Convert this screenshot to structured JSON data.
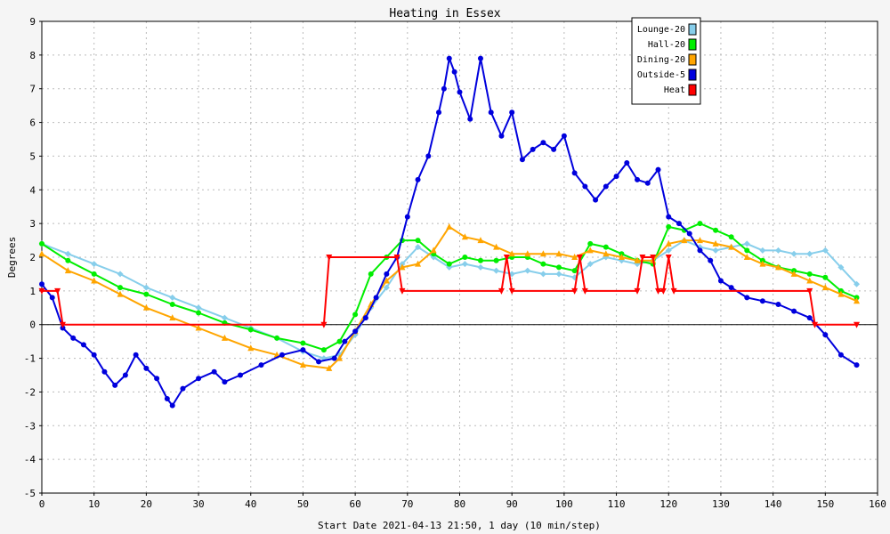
{
  "chart_data": {
    "type": "line",
    "title": "Heating in Essex",
    "xlabel": "Start Date 2021-04-13 21:50, 1 day (10 min/step)",
    "ylabel": "Degrees",
    "xlim": [
      0,
      160
    ],
    "ylim": [
      -5,
      9
    ],
    "xticks": [
      0,
      10,
      20,
      30,
      40,
      50,
      60,
      70,
      80,
      90,
      100,
      110,
      120,
      130,
      140,
      150,
      160
    ],
    "yticks": [
      -5,
      -4,
      -3,
      -2,
      -1,
      0,
      1,
      2,
      3,
      4,
      5,
      6,
      7,
      8,
      9
    ],
    "grid": true,
    "legend_position": "top-right",
    "background": "#f5f5f5",
    "series": [
      {
        "name": "Lounge-20",
        "color": "#87ceeb",
        "marker": "diamond",
        "x": [
          0,
          5,
          10,
          15,
          20,
          25,
          30,
          35,
          40,
          45,
          50,
          54,
          57,
          60,
          63,
          66,
          69,
          72,
          75,
          78,
          81,
          84,
          87,
          90,
          93,
          96,
          99,
          102,
          105,
          108,
          111,
          114,
          117,
          120,
          123,
          126,
          129,
          132,
          135,
          138,
          141,
          144,
          147,
          150,
          153,
          156
        ],
        "y": [
          2.4,
          2.1,
          1.8,
          1.5,
          1.1,
          0.8,
          0.5,
          0.2,
          -0.1,
          -0.4,
          -0.8,
          -1.0,
          -0.9,
          -0.3,
          0.5,
          1.1,
          1.8,
          2.3,
          2.0,
          1.7,
          1.8,
          1.7,
          1.6,
          1.5,
          1.6,
          1.5,
          1.5,
          1.4,
          1.8,
          2.0,
          1.9,
          1.8,
          1.9,
          2.2,
          2.5,
          2.3,
          2.2,
          2.3,
          2.4,
          2.2,
          2.2,
          2.1,
          2.1,
          2.2,
          1.7,
          1.2
        ]
      },
      {
        "name": "Hall-20",
        "color": "#00ee00",
        "marker": "circle",
        "x": [
          0,
          5,
          10,
          15,
          20,
          25,
          30,
          35,
          40,
          45,
          50,
          54,
          57,
          60,
          63,
          66,
          69,
          72,
          75,
          78,
          81,
          84,
          87,
          90,
          93,
          96,
          99,
          102,
          105,
          108,
          111,
          114,
          117,
          120,
          123,
          126,
          129,
          132,
          135,
          138,
          141,
          144,
          147,
          150,
          153,
          156
        ],
        "y": [
          2.4,
          1.9,
          1.5,
          1.1,
          0.9,
          0.6,
          0.35,
          0.05,
          -0.15,
          -0.4,
          -0.55,
          -0.75,
          -0.5,
          0.3,
          1.5,
          2.0,
          2.5,
          2.5,
          2.1,
          1.8,
          2.0,
          1.9,
          1.9,
          2.0,
          2.0,
          1.8,
          1.7,
          1.6,
          2.4,
          2.3,
          2.1,
          1.9,
          1.8,
          2.9,
          2.8,
          3.0,
          2.8,
          2.6,
          2.2,
          1.9,
          1.7,
          1.6,
          1.5,
          1.4,
          1.0,
          0.8
        ]
      },
      {
        "name": "Dining-20",
        "color": "#ffa500",
        "marker": "triangle",
        "x": [
          0,
          5,
          10,
          15,
          20,
          25,
          30,
          35,
          40,
          45,
          50,
          55,
          57,
          60,
          63,
          66,
          69,
          72,
          75,
          78,
          81,
          84,
          87,
          90,
          93,
          96,
          99,
          102,
          105,
          108,
          111,
          114,
          117,
          120,
          123,
          126,
          129,
          132,
          135,
          138,
          141,
          144,
          147,
          150,
          153,
          156
        ],
        "y": [
          2.1,
          1.6,
          1.3,
          0.9,
          0.5,
          0.2,
          -0.1,
          -0.4,
          -0.7,
          -0.9,
          -1.2,
          -1.3,
          -1.0,
          -0.2,
          0.6,
          1.3,
          1.7,
          1.8,
          2.2,
          2.9,
          2.6,
          2.5,
          2.3,
          2.1,
          2.1,
          2.1,
          2.1,
          2.0,
          2.2,
          2.1,
          2.0,
          1.9,
          1.9,
          2.4,
          2.5,
          2.5,
          2.4,
          2.3,
          2.0,
          1.8,
          1.7,
          1.5,
          1.3,
          1.1,
          0.9,
          0.7
        ]
      },
      {
        "name": "Outside-5",
        "color": "#0000dd",
        "marker": "circle",
        "x": [
          0,
          2,
          4,
          6,
          8,
          10,
          12,
          14,
          16,
          18,
          20,
          22,
          24,
          25,
          27,
          30,
          33,
          35,
          38,
          42,
          46,
          50,
          53,
          56,
          58,
          60,
          62,
          64,
          66,
          68,
          70,
          72,
          74,
          76,
          77,
          78,
          79,
          80,
          82,
          84,
          86,
          88,
          90,
          92,
          94,
          96,
          98,
          100,
          102,
          104,
          106,
          108,
          110,
          112,
          114,
          116,
          118,
          120,
          122,
          124,
          126,
          128,
          130,
          132,
          135,
          138,
          141,
          144,
          147,
          150,
          153,
          156
        ],
        "y": [
          1.2,
          0.8,
          -0.1,
          -0.4,
          -0.6,
          -0.9,
          -1.4,
          -1.8,
          -1.5,
          -0.9,
          -1.3,
          -1.6,
          -2.2,
          -2.4,
          -1.9,
          -1.6,
          -1.4,
          -1.7,
          -1.5,
          -1.2,
          -0.9,
          -0.75,
          -1.1,
          -1.0,
          -0.5,
          -0.2,
          0.2,
          0.8,
          1.5,
          2.0,
          3.2,
          4.3,
          5.0,
          6.3,
          7.0,
          7.9,
          7.5,
          6.9,
          6.1,
          7.9,
          6.3,
          5.6,
          6.3,
          4.9,
          5.2,
          5.4,
          5.2,
          5.6,
          4.5,
          4.1,
          3.7,
          4.1,
          4.4,
          4.8,
          4.3,
          4.2,
          4.6,
          3.2,
          3.0,
          2.7,
          2.2,
          1.9,
          1.3,
          1.1,
          0.8,
          0.7,
          0.6,
          0.4,
          0.2,
          -0.3,
          -0.9,
          -1.2
        ]
      },
      {
        "name": "Heat",
        "color": "#ff0000",
        "marker": "triangle-down",
        "x": [
          0,
          3,
          4,
          54,
          55,
          68,
          69,
          88,
          89,
          90,
          102,
          103,
          104,
          114,
          115,
          117,
          118,
          119,
          120,
          121,
          147,
          148,
          156
        ],
        "y": [
          1,
          1,
          0,
          0,
          2,
          2,
          1,
          1,
          2,
          1,
          1,
          2,
          1,
          1,
          2,
          2,
          1,
          1,
          2,
          1,
          1,
          0,
          0
        ]
      }
    ]
  }
}
